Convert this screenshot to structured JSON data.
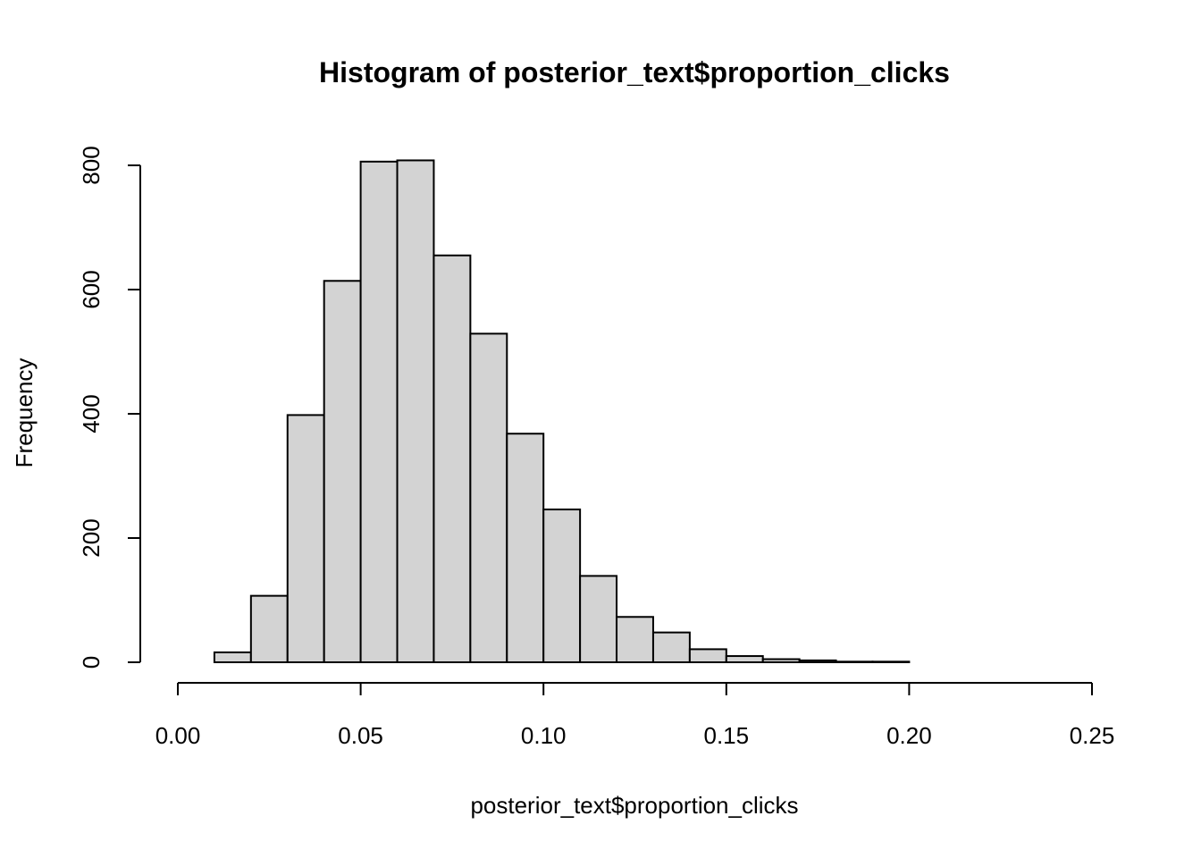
{
  "chart_data": {
    "type": "bar",
    "title": "Histogram of posterior_text$proportion_clicks",
    "xlabel": "posterior_text$proportion_clicks",
    "ylabel": "Frequency",
    "bar_color": "#d3d3d3",
    "xlim": [
      0.0,
      0.25
    ],
    "ylim": [
      0,
      800
    ],
    "x_ticks": [
      "0.00",
      "0.05",
      "0.10",
      "0.15",
      "0.20",
      "0.25"
    ],
    "y_ticks": [
      "0",
      "200",
      "400",
      "600",
      "800"
    ],
    "bin_width": 0.01,
    "bins": [
      {
        "start": 0.01,
        "end": 0.02,
        "count": 16
      },
      {
        "start": 0.02,
        "end": 0.03,
        "count": 107
      },
      {
        "start": 0.03,
        "end": 0.04,
        "count": 398
      },
      {
        "start": 0.04,
        "end": 0.05,
        "count": 614
      },
      {
        "start": 0.05,
        "end": 0.06,
        "count": 806
      },
      {
        "start": 0.06,
        "end": 0.07,
        "count": 808
      },
      {
        "start": 0.07,
        "end": 0.08,
        "count": 655
      },
      {
        "start": 0.08,
        "end": 0.09,
        "count": 529
      },
      {
        "start": 0.09,
        "end": 0.1,
        "count": 368
      },
      {
        "start": 0.1,
        "end": 0.11,
        "count": 246
      },
      {
        "start": 0.11,
        "end": 0.12,
        "count": 139
      },
      {
        "start": 0.12,
        "end": 0.13,
        "count": 73
      },
      {
        "start": 0.13,
        "end": 0.14,
        "count": 48
      },
      {
        "start": 0.14,
        "end": 0.15,
        "count": 21
      },
      {
        "start": 0.15,
        "end": 0.16,
        "count": 10
      },
      {
        "start": 0.16,
        "end": 0.17,
        "count": 5
      },
      {
        "start": 0.17,
        "end": 0.18,
        "count": 3
      },
      {
        "start": 0.18,
        "end": 0.19,
        "count": 1
      },
      {
        "start": 0.19,
        "end": 0.2,
        "count": 1
      }
    ]
  }
}
